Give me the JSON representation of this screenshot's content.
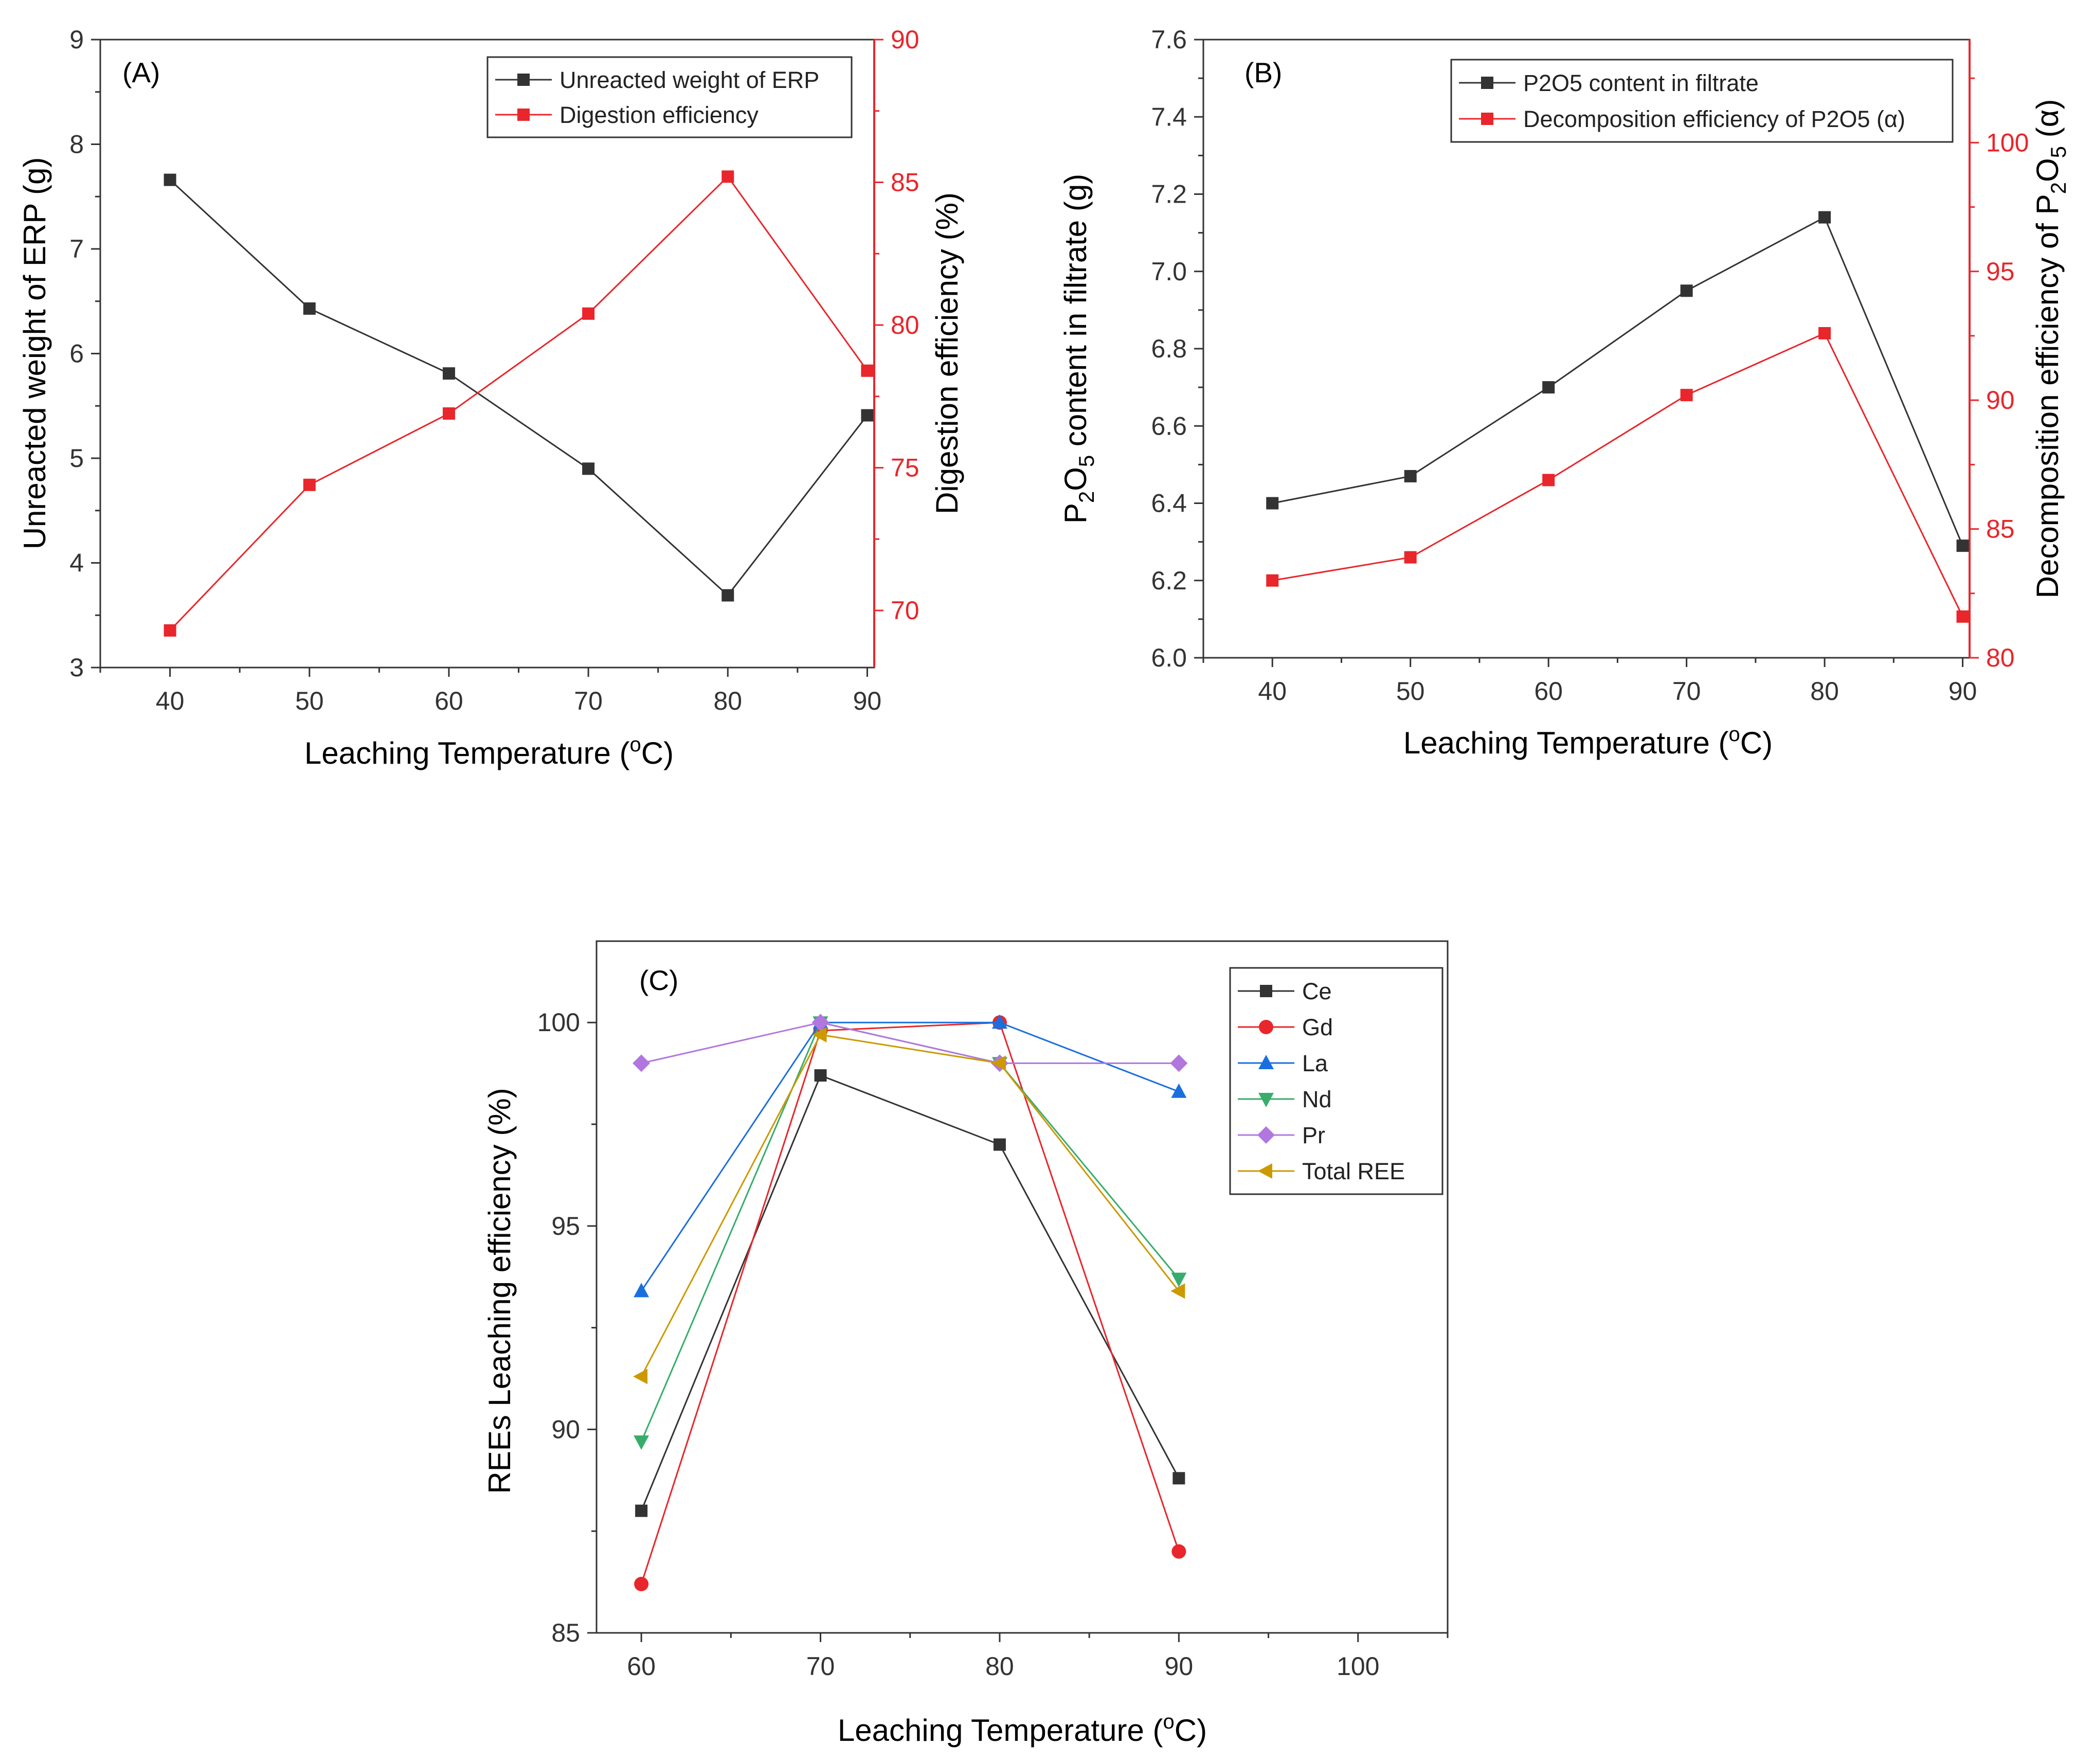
{
  "chart_data": [
    {
      "type": "line",
      "panel_label": "(A)",
      "xlabel": "Leaching Temperature",
      "xlabel_unit_prefix": "(",
      "xlabel_unit_sup": "o",
      "xlabel_unit_suffix": "C)",
      "x": [
        40,
        50,
        60,
        70,
        80,
        90
      ],
      "x_ticks": [
        40,
        50,
        60,
        70,
        80,
        90
      ],
      "xlim": [
        35,
        90.5
      ],
      "left_axis": {
        "label": "Unreacted weight of ERP (g)",
        "ylim": [
          3,
          9
        ],
        "ticks": [
          3,
          4,
          5,
          6,
          7,
          8,
          9
        ]
      },
      "right_axis": {
        "label": "Digestion efficiency (%)",
        "ylim": [
          68,
          90
        ],
        "ticks": [
          70,
          75,
          80,
          85,
          90
        ],
        "color": "#e8262b"
      },
      "series": [
        {
          "name": "Unreacted weight of ERP",
          "axis": "left",
          "color": "#333333",
          "marker": "square",
          "values": [
            7.66,
            6.43,
            5.81,
            4.9,
            3.69,
            5.41
          ]
        },
        {
          "name": "Digestion efficiency",
          "axis": "right",
          "color": "#e8262b",
          "marker": "square",
          "values": [
            69.3,
            74.4,
            76.9,
            80.4,
            85.2,
            78.4
          ]
        }
      ],
      "legend_position": "top-right"
    },
    {
      "type": "line",
      "panel_label": "(B)",
      "xlabel": "Leaching Temperature",
      "xlabel_unit_prefix": "(",
      "xlabel_unit_sup": "o",
      "xlabel_unit_suffix": "C)",
      "x": [
        40,
        50,
        60,
        70,
        80,
        90
      ],
      "x_ticks": [
        40,
        50,
        60,
        70,
        80,
        90
      ],
      "xlim": [
        35,
        90.5
      ],
      "left_axis": {
        "label_parts": [
          "P",
          "2",
          "O",
          "5",
          " content in filtrate (g)"
        ],
        "ylim": [
          6.0,
          7.6
        ],
        "ticks": [
          "6.0",
          "6.2",
          "6.4",
          "6.6",
          "6.8",
          "7.0",
          "7.2",
          "7.4",
          "7.6"
        ]
      },
      "right_axis": {
        "label_parts": [
          "Decomposition efficiency of P",
          "2",
          "O",
          "5",
          " (α)"
        ],
        "ylim": [
          80,
          104
        ],
        "ticks": [
          80,
          85,
          90,
          95,
          100
        ],
        "color": "#e8262b"
      },
      "series": [
        {
          "name": "P2O5 content in filtrate",
          "axis": "left",
          "color": "#333333",
          "marker": "square",
          "values": [
            6.4,
            6.47,
            6.7,
            6.95,
            7.14,
            6.29
          ]
        },
        {
          "name": "Decomposition efficiency of P2O5 (α)",
          "axis": "right",
          "color": "#e8262b",
          "marker": "square",
          "values": [
            83.0,
            83.9,
            86.9,
            90.2,
            92.6,
            81.6
          ]
        }
      ],
      "legend_position": "top-right"
    },
    {
      "type": "line",
      "panel_label": "(C)",
      "xlabel": "Leaching Temperature",
      "xlabel_unit_prefix": "(",
      "xlabel_unit_sup": "o",
      "xlabel_unit_suffix": "C)",
      "ylabel": "REEs Leaching efficiency (%)",
      "x": [
        60,
        70,
        80,
        90
      ],
      "x_ticks": [
        60,
        70,
        80,
        90,
        100
      ],
      "xlim": [
        57.5,
        105
      ],
      "ylim": [
        85,
        102
      ],
      "y_ticks": [
        85,
        90,
        95,
        100
      ],
      "series": [
        {
          "name": "Ce",
          "color": "#333333",
          "marker": "square",
          "values": [
            88.0,
            98.7,
            97.0,
            88.8
          ]
        },
        {
          "name": "Gd",
          "color": "#e8262b",
          "marker": "circle",
          "values": [
            86.2,
            99.8,
            100.0,
            87.0
          ]
        },
        {
          "name": "La",
          "color": "#1a6fdf",
          "marker": "triangle-up",
          "values": [
            93.4,
            100.0,
            100.0,
            98.3
          ]
        },
        {
          "name": "Nd",
          "color": "#37ad6b",
          "marker": "triangle-down",
          "values": [
            89.7,
            100.0,
            99.0,
            93.7
          ]
        },
        {
          "name": "Pr",
          "color": "#b177de",
          "marker": "diamond",
          "values": [
            99.0,
            100.0,
            99.0,
            99.0
          ]
        },
        {
          "name": "Total REE",
          "color": "#cc9900",
          "marker": "triangle-left",
          "values": [
            91.3,
            99.7,
            99.0,
            93.4
          ]
        }
      ],
      "legend_position": "top-right"
    }
  ]
}
